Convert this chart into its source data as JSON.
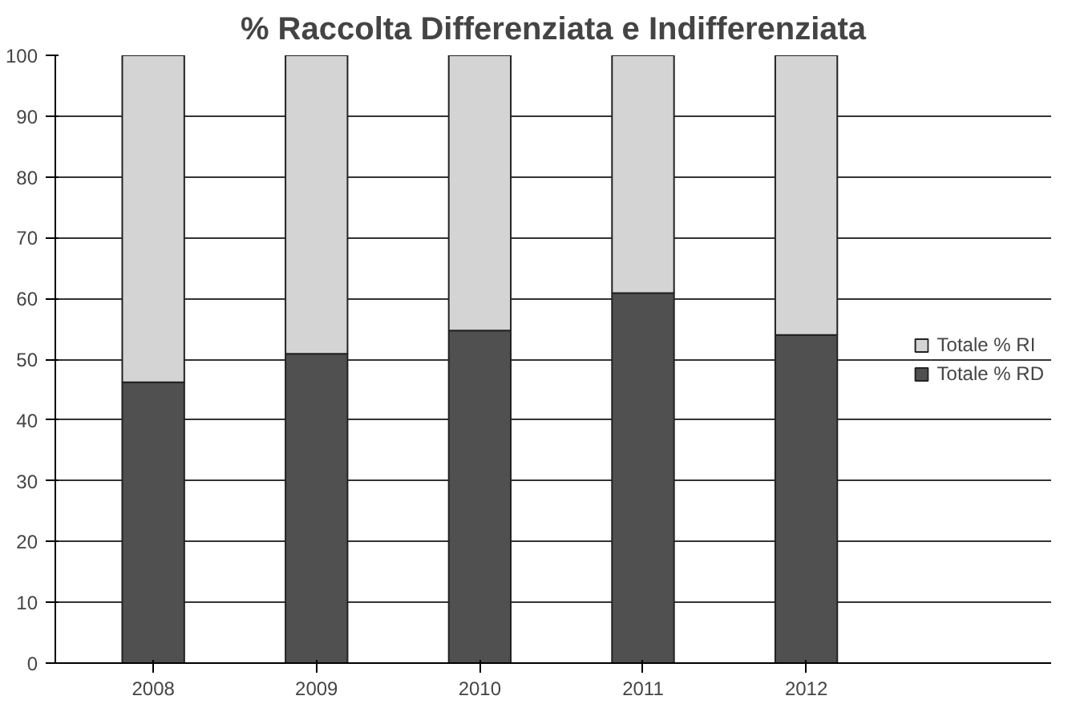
{
  "chart_data": {
    "type": "bar",
    "title": "% Raccolta Differenziata e Indifferenziata",
    "categories": [
      "2008",
      "2009",
      "2010",
      "2011",
      "2012"
    ],
    "stacked": true,
    "series": [
      {
        "name": "Totale % RD",
        "color": "#505050",
        "values": [
          46.2,
          50.9,
          54.7,
          60.9,
          54.0
        ]
      },
      {
        "name": "Totale % RI",
        "color": "#d4d4d4",
        "values": [
          53.8,
          49.1,
          45.3,
          39.1,
          46.0
        ]
      }
    ],
    "ylim": [
      0,
      100
    ],
    "yticks": [
      0,
      10,
      20,
      30,
      40,
      50,
      60,
      70,
      80,
      90,
      100
    ],
    "grid": "y",
    "legend": "right"
  }
}
